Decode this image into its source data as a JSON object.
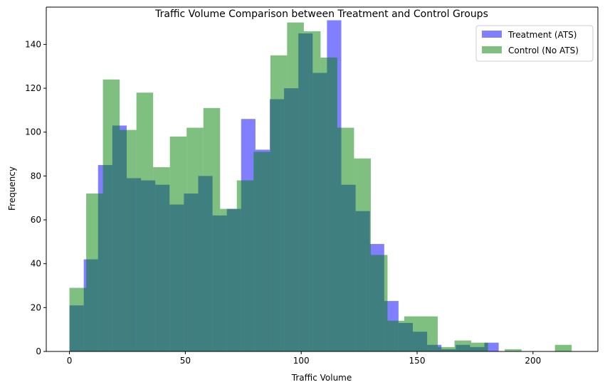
{
  "chart_data": {
    "type": "bar",
    "subtype": "overlapping-histogram",
    "title": "Traffic Volume Comparison between Treatment and Control Groups",
    "xlabel": "Traffic Volume",
    "ylabel": "Frequency",
    "xlim": [
      -10,
      228
    ],
    "ylim": [
      0,
      157
    ],
    "xticks": [
      0,
      50,
      100,
      150,
      200
    ],
    "yticks": [
      0,
      20,
      40,
      60,
      80,
      100,
      120,
      140
    ],
    "grid": false,
    "legend_position": "top-right",
    "series": [
      {
        "name": "Treatment (ATS)",
        "color": "#0000ff",
        "alpha": 0.5,
        "bin_start": 0,
        "bin_end": 185.2,
        "values": [
          21,
          42,
          85,
          103,
          79,
          78,
          76,
          67,
          72,
          80,
          62,
          65,
          106,
          92,
          115,
          120,
          145,
          127,
          151,
          76,
          64,
          49,
          23,
          13,
          9,
          3,
          1,
          3,
          2,
          4
        ]
      },
      {
        "name": "Control (No ATS)",
        "color": "#008000",
        "alpha": 0.5,
        "bin_start": 0,
        "bin_end": 216.7,
        "values": [
          29,
          72,
          124,
          101,
          118,
          84,
          98,
          102,
          111,
          65,
          78,
          91,
          135,
          150,
          146,
          134,
          102,
          88,
          44,
          14,
          16,
          16,
          2,
          5,
          4,
          0,
          1,
          0,
          0,
          3
        ]
      }
    ]
  }
}
